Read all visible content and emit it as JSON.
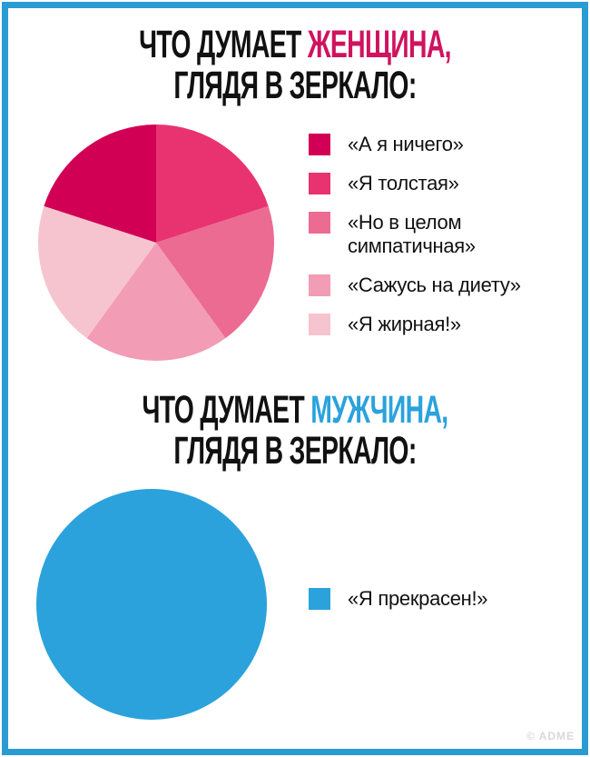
{
  "colors": {
    "frame": "#2a9cd4",
    "woman_accent": "#d0135f",
    "man_accent": "#2ba2dc",
    "title_text": "#111111",
    "watermark_text": "#d8d8d8"
  },
  "woman_section": {
    "title_prefix": "ЧТО ДУМАЕТ ",
    "title_highlight": "ЖЕНЩИНА,",
    "title_line2": "ГЛЯДЯ В ЗЕРКАЛО:"
  },
  "man_section": {
    "title_prefix": "ЧТО ДУМАЕТ ",
    "title_highlight": "МУЖЧИНА,",
    "title_line2": "ГЛЯДЯ В ЗЕРКАЛО:"
  },
  "watermark": "© ADME",
  "chart_data": [
    {
      "type": "pie",
      "title": "ЧТО ДУМАЕТ ЖЕНЩИНА, ГЛЯДЯ В ЗЕРКАЛО:",
      "units": "percent",
      "rotation_deg": -72,
      "legend_position": "right",
      "slices": [
        {
          "label": "«А я ничего»",
          "value": 20,
          "color": "#d10055"
        },
        {
          "label": "«Я толстая»",
          "value": 20,
          "color": "#e93370"
        },
        {
          "label": "«Но в целом симпатичная»",
          "value": 20,
          "color": "#ec6b92"
        },
        {
          "label": "«Сажусь на диету»",
          "value": 20,
          "color": "#f29cb5"
        },
        {
          "label": "«Я жирная!»",
          "value": 20,
          "color": "#f6c4ce"
        }
      ]
    },
    {
      "type": "pie",
      "title": "ЧТО ДУМАЕТ МУЖЧИНА, ГЛЯДЯ В ЗЕРКАЛО:",
      "units": "percent",
      "rotation_deg": 0,
      "legend_position": "right",
      "slices": [
        {
          "label": "«Я прекрасен!»",
          "value": 100,
          "color": "#2ba2dc"
        }
      ]
    }
  ]
}
